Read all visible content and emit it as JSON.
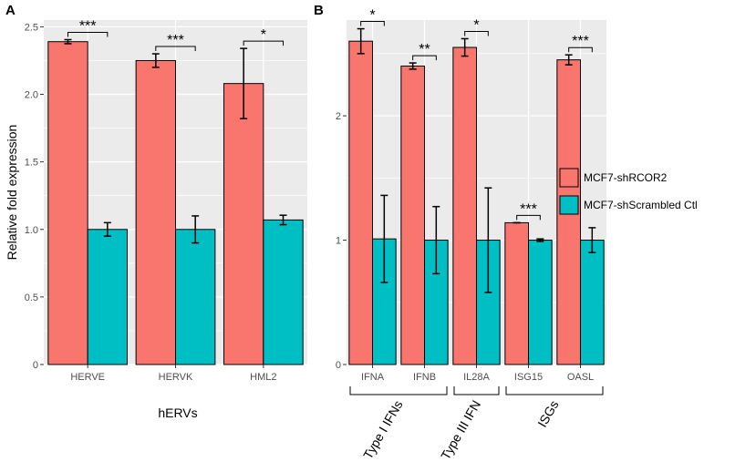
{
  "legend": {
    "items": [
      {
        "label": "MCF7-shRCOR2",
        "color": "#F8766D"
      },
      {
        "label": "MCF7-shScrambled Ctl",
        "color": "#00BFC4"
      }
    ]
  },
  "chart_data": [
    {
      "panel": "A",
      "type": "bar",
      "title": "",
      "xlabel": "hERVs",
      "ylabel": "Relative fold expression",
      "ylim": [
        0,
        2.55
      ],
      "yticks": [
        "0",
        "0.5",
        "1.0",
        "1.5",
        "2.0",
        "2.5"
      ],
      "categories": [
        "HERVE",
        "HERVK",
        "HML2"
      ],
      "series": [
        {
          "name": "MCF7-shRCOR2",
          "color": "#F8766D",
          "values": [
            2.39,
            2.25,
            2.08
          ],
          "err": [
            0.015,
            0.05,
            0.26
          ]
        },
        {
          "name": "MCF7-shScrambled Ctl",
          "color": "#00BFC4",
          "values": [
            1.0,
            1.0,
            1.07
          ],
          "err": [
            0.05,
            0.1,
            0.035
          ]
        }
      ],
      "annotations": [
        "***",
        "***",
        "*"
      ],
      "grid": true
    },
    {
      "panel": "B",
      "type": "bar",
      "title": "",
      "xlabel": "",
      "ylabel": "",
      "ylim": [
        0,
        2.77
      ],
      "yticks": [
        "0",
        "1",
        "2"
      ],
      "categories": [
        "IFNA",
        "IFNB",
        "IL28A",
        "ISG15",
        "OASL"
      ],
      "series": [
        {
          "name": "MCF7-shRCOR2",
          "color": "#F8766D",
          "values": [
            2.6,
            2.4,
            2.55,
            1.14,
            2.45
          ],
          "err": [
            0.1,
            0.025,
            0.07,
            0.0,
            0.04
          ]
        },
        {
          "name": "MCF7-shScrambled Ctl",
          "color": "#00BFC4",
          "values": [
            1.01,
            1.0,
            1.0,
            1.0,
            1.0
          ],
          "err": [
            0.35,
            0.27,
            0.42,
            0.01,
            0.1
          ]
        }
      ],
      "annotations": [
        "*",
        "**",
        "*",
        "***",
        "***"
      ],
      "groups": [
        {
          "label": "Type I IFNs",
          "from": 0,
          "to": 1
        },
        {
          "label": "Type III IFN",
          "from": 2,
          "to": 2
        },
        {
          "label": "ISGs",
          "from": 3,
          "to": 4
        }
      ],
      "grid": true
    }
  ]
}
